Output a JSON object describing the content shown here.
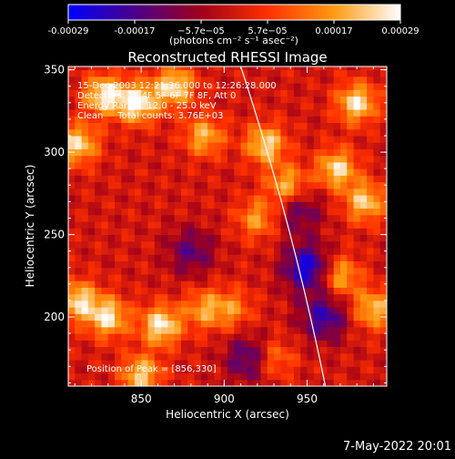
{
  "chart_data": {
    "type": "heatmap",
    "title": "Reconstructed RHESSI Image",
    "xlabel": "Heliocentric X (arcsec)",
    "ylabel": "Heliocentric Y (arcsec)",
    "xlim": [
      806,
      998
    ],
    "ylim": [
      158,
      352
    ],
    "xticks": [
      850,
      900,
      950
    ],
    "yticks": [
      200,
      250,
      300,
      350
    ],
    "colorbar": {
      "ticks": [
        "-0.00029",
        "-0.00017",
        "−5.7e−05",
        "5.7e−05",
        "0.00017",
        "0.00029"
      ],
      "tick_values": [
        -0.00029,
        -0.00017,
        -5.7e-05,
        5.7e-05,
        0.00017,
        0.00029
      ],
      "unit_label": "(photons cm⁻² s⁻¹ asec⁻²)",
      "colors": [
        "#0000ff",
        "#4a008a",
        "#a0001a",
        "#ff3000",
        "#ff9a10",
        "#ffffff"
      ]
    },
    "limb": {
      "x_at_top": 910,
      "x_at_bottom": 961
    },
    "peak_position": [
      856,
      330
    ],
    "hot_regions": [
      {
        "x": 828,
        "y": 335,
        "level": 0.95
      },
      {
        "x": 848,
        "y": 330,
        "level": 1.0
      },
      {
        "x": 870,
        "y": 340,
        "level": 0.9
      },
      {
        "x": 812,
        "y": 305,
        "level": 0.85
      },
      {
        "x": 888,
        "y": 310,
        "level": 0.7
      },
      {
        "x": 925,
        "y": 305,
        "level": 0.85
      },
      {
        "x": 938,
        "y": 280,
        "level": 0.75
      },
      {
        "x": 920,
        "y": 260,
        "level": 0.6
      },
      {
        "x": 968,
        "y": 290,
        "level": 0.85
      },
      {
        "x": 980,
        "y": 330,
        "level": 0.9
      },
      {
        "x": 985,
        "y": 270,
        "level": 0.8
      },
      {
        "x": 970,
        "y": 225,
        "level": 0.7
      },
      {
        "x": 990,
        "y": 205,
        "level": 0.75
      },
      {
        "x": 812,
        "y": 210,
        "level": 0.85
      },
      {
        "x": 830,
        "y": 200,
        "level": 0.9
      },
      {
        "x": 862,
        "y": 195,
        "level": 0.95
      },
      {
        "x": 888,
        "y": 205,
        "level": 0.6
      },
      {
        "x": 905,
        "y": 205,
        "level": 0.5
      },
      {
        "x": 850,
        "y": 165,
        "level": 0.8
      },
      {
        "x": 930,
        "y": 175,
        "level": 0.5
      }
    ],
    "cold_regions": [
      {
        "x": 950,
        "y": 230,
        "level": -0.9
      },
      {
        "x": 960,
        "y": 200,
        "level": -0.7
      },
      {
        "x": 915,
        "y": 175,
        "level": -0.6
      },
      {
        "x": 880,
        "y": 240,
        "level": -0.5
      },
      {
        "x": 945,
        "y": 265,
        "level": -0.5
      }
    ],
    "annotations": {
      "time": "15-Dec-2003 12:21:36.000 to 12:26:28.000",
      "detectors": "Detectors: 3F 4F 5F 6F 7F 8F, Att 0",
      "energy": "Energy Range: 12.0 - 25.0 keV",
      "method": "Clean     Total counts: 3.76E+03",
      "peak": "Position of Peak = [856,330]"
    }
  },
  "footer": {
    "timestamp": "7-May-2022 20:01"
  }
}
